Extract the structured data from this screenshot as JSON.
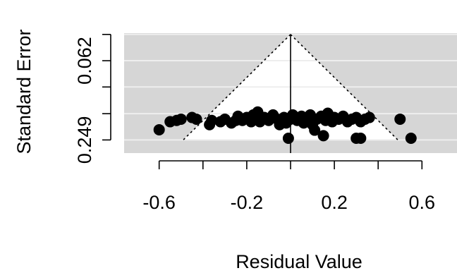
{
  "chart_data": {
    "type": "scatter",
    "subtype": "funnel",
    "title": "",
    "xlabel": "Residual Value",
    "ylabel": "Standard Error",
    "xlim": [
      -0.76,
      0.76
    ],
    "ylim": [
      0.28,
      -0.003
    ],
    "y_reversed": true,
    "x_ticks": [
      -0.6,
      -0.4,
      -0.2,
      0.0,
      0.2,
      0.4,
      0.6
    ],
    "x_tick_labels": [
      "-0.6",
      "",
      "-0.2",
      "",
      "0.2",
      "",
      "0.6"
    ],
    "y_ticks": [
      0.0,
      0.062,
      0.124,
      0.187,
      0.249
    ],
    "y_tick_labels": [
      "",
      "0.062",
      "",
      "",
      "0.249"
    ],
    "grid": true,
    "funnel": {
      "center": 0.0,
      "apex_se": 0.0,
      "base_se": 0.249,
      "half_width_at_base": 0.49
    },
    "colors": {
      "panel_background": "#d6d6d6",
      "funnel_fill": "#ffffff",
      "gridline": "#eeeeee",
      "points": "#000000"
    },
    "points": [
      {
        "x": -0.6,
        "y": 0.225
      },
      {
        "x": -0.55,
        "y": 0.206
      },
      {
        "x": -0.52,
        "y": 0.203
      },
      {
        "x": -0.5,
        "y": 0.2
      },
      {
        "x": -0.45,
        "y": 0.196
      },
      {
        "x": -0.43,
        "y": 0.2
      },
      {
        "x": -0.37,
        "y": 0.213
      },
      {
        "x": -0.36,
        "y": 0.203
      },
      {
        "x": -0.32,
        "y": 0.206
      },
      {
        "x": -0.3,
        "y": 0.2
      },
      {
        "x": -0.27,
        "y": 0.209
      },
      {
        "x": -0.25,
        "y": 0.203
      },
      {
        "x": -0.24,
        "y": 0.193
      },
      {
        "x": -0.22,
        "y": 0.203
      },
      {
        "x": -0.2,
        "y": 0.196
      },
      {
        "x": -0.18,
        "y": 0.206
      },
      {
        "x": -0.17,
        "y": 0.19
      },
      {
        "x": -0.15,
        "y": 0.2
      },
      {
        "x": -0.15,
        "y": 0.183
      },
      {
        "x": -0.14,
        "y": 0.206
      },
      {
        "x": -0.12,
        "y": 0.196
      },
      {
        "x": -0.1,
        "y": 0.203
      },
      {
        "x": -0.08,
        "y": 0.19
      },
      {
        "x": -0.06,
        "y": 0.2
      },
      {
        "x": -0.05,
        "y": 0.213
      },
      {
        "x": -0.03,
        "y": 0.196
      },
      {
        "x": -0.02,
        "y": 0.209
      },
      {
        "x": 0.0,
        "y": 0.2
      },
      {
        "x": 0.01,
        "y": 0.19
      },
      {
        "x": 0.03,
        "y": 0.203
      },
      {
        "x": 0.05,
        "y": 0.193
      },
      {
        "x": 0.06,
        "y": 0.209
      },
      {
        "x": 0.08,
        "y": 0.2
      },
      {
        "x": 0.09,
        "y": 0.19
      },
      {
        "x": 0.1,
        "y": 0.213
      },
      {
        "x": 0.12,
        "y": 0.2
      },
      {
        "x": 0.14,
        "y": 0.193
      },
      {
        "x": 0.16,
        "y": 0.203
      },
      {
        "x": 0.17,
        "y": 0.186
      },
      {
        "x": 0.19,
        "y": 0.206
      },
      {
        "x": 0.2,
        "y": 0.196
      },
      {
        "x": 0.22,
        "y": 0.2
      },
      {
        "x": 0.24,
        "y": 0.193
      },
      {
        "x": 0.26,
        "y": 0.206
      },
      {
        "x": 0.28,
        "y": 0.2
      },
      {
        "x": 0.3,
        "y": 0.196
      },
      {
        "x": 0.32,
        "y": 0.206
      },
      {
        "x": 0.34,
        "y": 0.2
      },
      {
        "x": 0.36,
        "y": 0.196
      },
      {
        "x": 0.5,
        "y": 0.2
      },
      {
        "x": -0.01,
        "y": 0.245
      },
      {
        "x": 0.15,
        "y": 0.239
      },
      {
        "x": 0.3,
        "y": 0.245
      },
      {
        "x": 0.32,
        "y": 0.245
      },
      {
        "x": 0.55,
        "y": 0.245
      },
      {
        "x": 0.11,
        "y": 0.226
      }
    ]
  }
}
